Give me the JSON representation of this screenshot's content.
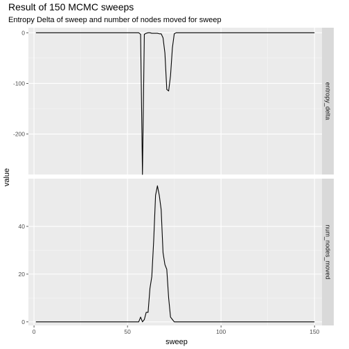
{
  "chart_data": {
    "type": "line",
    "title": "Result of 150 MCMC sweeps",
    "subtitle": "Entropy Delta of sweep and number of nodes moved for sweep",
    "xlabel": "sweep",
    "ylabel": "value",
    "xlim": [
      -3,
      154
    ],
    "x_ticks": [
      0,
      50,
      100,
      150
    ],
    "x_tick_labels": [
      "0",
      "50",
      "100",
      "150"
    ],
    "grid": true,
    "line_color": "#000000",
    "panel_background": "#ebebeb",
    "strip_background": "#d9d9d9",
    "facets": [
      {
        "strip_label": "entropy_delta",
        "ylim": [
          -280,
          10
        ],
        "y_ticks": [
          0,
          -100,
          -200
        ],
        "y_tick_labels": [
          "0",
          "-100",
          "-200"
        ],
        "x": [
          1,
          20,
          40,
          55,
          56,
          57,
          58,
          59,
          60,
          61,
          62,
          63,
          64,
          65,
          66,
          67,
          68,
          69,
          70,
          71,
          72,
          73,
          74,
          75,
          76,
          77,
          80,
          100,
          120,
          150
        ],
        "y": [
          0,
          0,
          0,
          0,
          0,
          -3,
          -280,
          -3,
          -1,
          0,
          0,
          -1,
          -1,
          -1,
          -1,
          -2,
          -2,
          -10,
          -40,
          -112,
          -115,
          -85,
          -30,
          -2,
          0,
          0,
          0,
          0,
          0,
          0
        ]
      },
      {
        "strip_label": "num_nodes_moved",
        "ylim": [
          -1.5,
          60
        ],
        "y_ticks": [
          0,
          20,
          40
        ],
        "y_tick_labels": [
          "0",
          "20",
          "40"
        ],
        "x": [
          1,
          20,
          40,
          55,
          56,
          57,
          58,
          59,
          60,
          61,
          62,
          63,
          64,
          65,
          66,
          67,
          68,
          69,
          70,
          71,
          72,
          73,
          74,
          75,
          76,
          77,
          80,
          100,
          120,
          150
        ],
        "y": [
          0,
          0,
          0,
          0,
          0,
          2,
          0,
          1,
          4,
          4,
          14,
          19,
          34,
          53,
          57,
          53,
          47,
          29,
          24,
          22,
          10,
          2,
          1,
          0,
          0,
          0,
          0,
          0,
          0,
          0
        ]
      }
    ]
  }
}
